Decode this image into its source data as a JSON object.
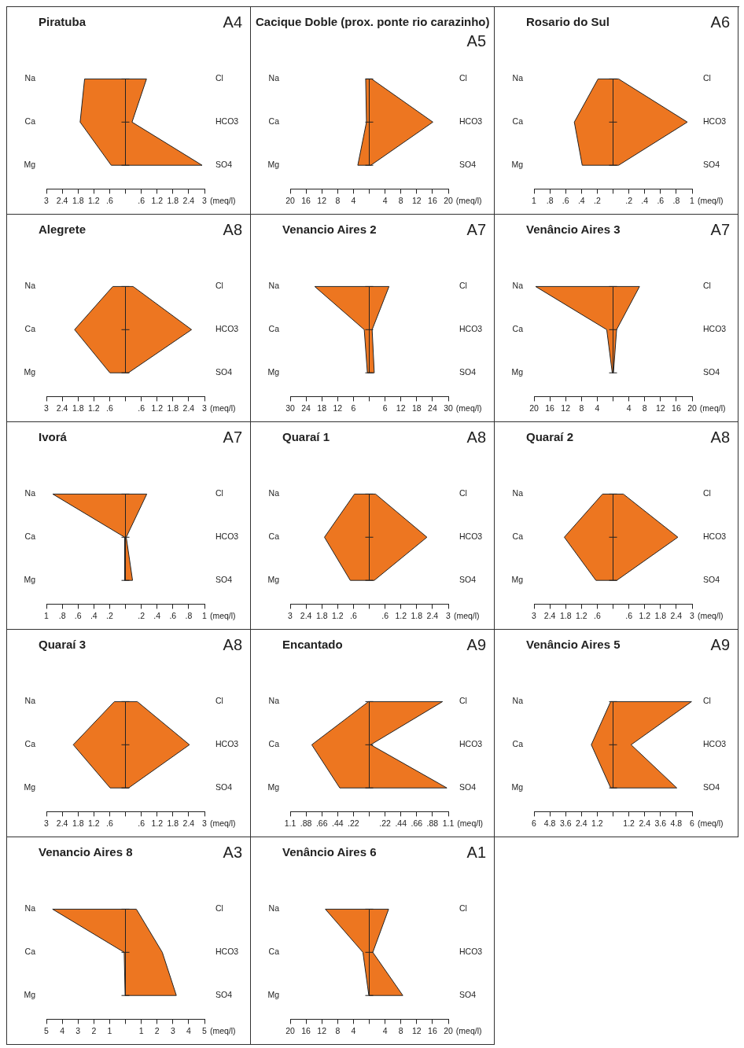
{
  "chart_data": [
    {
      "type": "area",
      "orientation": "horizontal",
      "title": "Piratuba",
      "annotations": [
        "A4"
      ],
      "categories": [
        "Na",
        "Ca",
        "Mg"
      ],
      "y2_categories": [
        "Cl",
        "HCO3",
        "SO4"
      ],
      "xlabel": "(meq/l)",
      "xlim": [
        -3,
        3
      ],
      "xticks": [
        {
          "value": -3,
          "label": "3"
        },
        {
          "value": -2.4,
          "label": "2.4"
        },
        {
          "value": -1.8,
          "label": "1.8"
        },
        {
          "value": -1.2,
          "label": "1.2"
        },
        {
          "value": -0.6,
          "label": ".6"
        },
        {
          "value": 0,
          "label": null
        },
        {
          "value": 0.6,
          "label": ".6"
        },
        {
          "value": 1.2,
          "label": "1.2"
        },
        {
          "value": 1.8,
          "label": "1.8"
        },
        {
          "value": 2.4,
          "label": "2.4"
        },
        {
          "value": 3,
          "label": "3"
        }
      ],
      "ref_lines": [
        {
          "axis": "x",
          "value": 0
        }
      ],
      "series": [
        {
          "color": "#ed7620",
          "values": [
            -1.55,
            -1.72,
            -0.54
          ]
        },
        {
          "color": "#ed7621",
          "values": [
            0.8,
            0.25,
            2.91
          ]
        }
      ]
    },
    {
      "type": "area",
      "orientation": "horizontal",
      "title": "Cacique Doble (prox. ponte rio carazinho)",
      "annotations": [
        "A5"
      ],
      "categories": [
        "Na",
        "Ca",
        "Mg"
      ],
      "y2_categories": [
        "Cl",
        "HCO3",
        "SO4"
      ],
      "xlabel": "(meq/l)",
      "xlim": [
        -20,
        20
      ],
      "xticks": [
        {
          "value": -20,
          "label": "20"
        },
        {
          "value": -16,
          "label": "16"
        },
        {
          "value": -12,
          "label": "12"
        },
        {
          "value": -8,
          "label": "8"
        },
        {
          "value": -4,
          "label": "4"
        },
        {
          "value": 0,
          "label": null
        },
        {
          "value": 4,
          "label": "4"
        },
        {
          "value": 8,
          "label": "8"
        },
        {
          "value": 12,
          "label": "12"
        },
        {
          "value": 16,
          "label": "16"
        },
        {
          "value": 20,
          "label": "20"
        }
      ],
      "ref_lines": [
        {
          "axis": "x",
          "value": 0
        }
      ],
      "series": [
        {
          "color": "#ed7620",
          "values": [
            -0.9,
            -0.7,
            -2.9
          ]
        },
        {
          "color": "#ed7621",
          "values": [
            0.6,
            16.1,
            0.4
          ]
        }
      ]
    },
    {
      "type": "area",
      "orientation": "horizontal",
      "title": "Rosario do Sul",
      "annotations": [
        "A6"
      ],
      "categories": [
        "Na",
        "Ca",
        "Mg"
      ],
      "y2_categories": [
        "Cl",
        "HCO3",
        "SO4"
      ],
      "xlabel": "(meq/l)",
      "xlim": [
        -1,
        1
      ],
      "xticks": [
        {
          "value": -1,
          "label": "1"
        },
        {
          "value": -0.8,
          "label": ".8"
        },
        {
          "value": -0.6,
          "label": ".6"
        },
        {
          "value": -0.4,
          "label": ".4"
        },
        {
          "value": -0.2,
          "label": ".2"
        },
        {
          "value": 0,
          "label": null
        },
        {
          "value": 0.2,
          "label": ".2"
        },
        {
          "value": 0.4,
          "label": ".4"
        },
        {
          "value": 0.6,
          "label": ".6"
        },
        {
          "value": 0.8,
          "label": ".8"
        },
        {
          "value": 1,
          "label": "1"
        }
      ],
      "ref_lines": [
        {
          "axis": "x",
          "value": 0
        }
      ],
      "series": [
        {
          "color": "#ed7620",
          "values": [
            -0.19,
            -0.49,
            -0.39
          ]
        },
        {
          "color": "#ed7621",
          "values": [
            0.07,
            0.94,
            0.07
          ]
        }
      ]
    },
    {
      "type": "area",
      "orientation": "horizontal",
      "title": "Alegrete",
      "annotations": [
        "A8"
      ],
      "categories": [
        "Na",
        "Ca",
        "Mg"
      ],
      "y2_categories": [
        "Cl",
        "HCO3",
        "SO4"
      ],
      "xlabel": "(meq/l)",
      "xlim": [
        -3,
        3
      ],
      "xticks": [
        {
          "value": -3,
          "label": "3"
        },
        {
          "value": -2.4,
          "label": "2.4"
        },
        {
          "value": -1.8,
          "label": "1.8"
        },
        {
          "value": -1.2,
          "label": "1.2"
        },
        {
          "value": -0.6,
          "label": ".6"
        },
        {
          "value": 0,
          "label": null
        },
        {
          "value": 0.6,
          "label": ".6"
        },
        {
          "value": 1.2,
          "label": "1.2"
        },
        {
          "value": 1.8,
          "label": "1.8"
        },
        {
          "value": 2.4,
          "label": "2.4"
        },
        {
          "value": 3,
          "label": "3"
        }
      ],
      "ref_lines": [
        {
          "axis": "x",
          "value": 0
        }
      ],
      "series": [
        {
          "color": "#ed7620",
          "values": [
            -0.48,
            -1.93,
            -0.59
          ]
        },
        {
          "color": "#ed7621",
          "values": [
            0.29,
            2.51,
            0.11
          ]
        }
      ]
    },
    {
      "type": "area",
      "orientation": "horizontal",
      "title": "Venancio Aires 2",
      "annotations": [
        "A7"
      ],
      "categories": [
        "Na",
        "Ca",
        "Mg"
      ],
      "y2_categories": [
        "Cl",
        "HCO3",
        "SO4"
      ],
      "xlabel": "(meq/l)",
      "xlim": [
        -30,
        30
      ],
      "xticks": [
        {
          "value": -30,
          "label": "30"
        },
        {
          "value": -24,
          "label": "24"
        },
        {
          "value": -18,
          "label": "18"
        },
        {
          "value": -12,
          "label": "12"
        },
        {
          "value": -6,
          "label": "6"
        },
        {
          "value": 0,
          "label": null
        },
        {
          "value": 6,
          "label": "6"
        },
        {
          "value": 12,
          "label": "12"
        },
        {
          "value": 18,
          "label": "18"
        },
        {
          "value": 24,
          "label": "24"
        },
        {
          "value": 30,
          "label": "30"
        }
      ],
      "ref_lines": [
        {
          "axis": "x",
          "value": 0
        }
      ],
      "series": [
        {
          "color": "#ed7620",
          "values": [
            -20.7,
            -1.9,
            -0.7
          ]
        },
        {
          "color": "#ed7621",
          "values": [
            7.5,
            1.1,
            1.9
          ]
        }
      ]
    },
    {
      "type": "area",
      "orientation": "horizontal",
      "title": "Venâncio Aires 3",
      "annotations": [
        "A7"
      ],
      "categories": [
        "Na",
        "Ca",
        "Mg"
      ],
      "y2_categories": [
        "Cl",
        "HCO3",
        "SO4"
      ],
      "xlabel": "(meq/l)",
      "xlim": [
        -20,
        20
      ],
      "xticks": [
        {
          "value": -20,
          "label": "20"
        },
        {
          "value": -16,
          "label": "16"
        },
        {
          "value": -12,
          "label": "12"
        },
        {
          "value": -8,
          "label": "8"
        },
        {
          "value": -4,
          "label": "4"
        },
        {
          "value": 0,
          "label": null
        },
        {
          "value": 4,
          "label": "4"
        },
        {
          "value": 8,
          "label": "8"
        },
        {
          "value": 12,
          "label": "12"
        },
        {
          "value": 16,
          "label": "16"
        },
        {
          "value": 20,
          "label": "20"
        }
      ],
      "ref_lines": [
        {
          "axis": "x",
          "value": 0
        }
      ],
      "series": [
        {
          "color": "#ed7620",
          "values": [
            -19.6,
            -1.6,
            -0.2
          ]
        },
        {
          "color": "#ed7621",
          "values": [
            6.7,
            0.9,
            0.1
          ]
        }
      ]
    },
    {
      "type": "area",
      "orientation": "horizontal",
      "title": "Ivorá",
      "annotations": [
        "A7"
      ],
      "categories": [
        "Na",
        "Ca",
        "Mg"
      ],
      "y2_categories": [
        "Cl",
        "HCO3",
        "SO4"
      ],
      "xlabel": "(meq/l)",
      "xlim": [
        -1,
        1
      ],
      "xticks": [
        {
          "value": -1,
          "label": "1"
        },
        {
          "value": -0.8,
          "label": ".8"
        },
        {
          "value": -0.6,
          "label": ".6"
        },
        {
          "value": -0.4,
          "label": ".4"
        },
        {
          "value": -0.2,
          "label": ".2"
        },
        {
          "value": 0,
          "label": null
        },
        {
          "value": 0.2,
          "label": ".2"
        },
        {
          "value": 0.4,
          "label": ".4"
        },
        {
          "value": 0.6,
          "label": ".6"
        },
        {
          "value": 0.8,
          "label": ".8"
        },
        {
          "value": 1,
          "label": "1"
        }
      ],
      "ref_lines": [
        {
          "axis": "x",
          "value": 0
        }
      ],
      "series": [
        {
          "color": "#ed7620",
          "values": [
            -0.92,
            -0.01,
            -0.01
          ]
        },
        {
          "color": "#ed7621",
          "values": [
            0.27,
            0.01,
            0.09
          ]
        }
      ]
    },
    {
      "type": "area",
      "orientation": "horizontal",
      "title": "Quaraí 1",
      "annotations": [
        "A8"
      ],
      "categories": [
        "Na",
        "Ca",
        "Mg"
      ],
      "y2_categories": [
        "Cl",
        "HCO3",
        "SO4"
      ],
      "xlabel": "(meq/l)",
      "xlim": [
        -3,
        3
      ],
      "xticks": [
        {
          "value": -3,
          "label": "3"
        },
        {
          "value": -2.4,
          "label": "2.4"
        },
        {
          "value": -1.8,
          "label": "1.8"
        },
        {
          "value": -1.2,
          "label": "1.2"
        },
        {
          "value": -0.6,
          "label": ".6"
        },
        {
          "value": 0,
          "label": null
        },
        {
          "value": 0.6,
          "label": ".6"
        },
        {
          "value": 1.2,
          "label": "1.2"
        },
        {
          "value": 1.8,
          "label": "1.8"
        },
        {
          "value": 2.4,
          "label": "2.4"
        },
        {
          "value": 3,
          "label": "3"
        }
      ],
      "ref_lines": [
        {
          "axis": "x",
          "value": 0
        }
      ],
      "series": [
        {
          "color": "#ed7620",
          "values": [
            -0.56,
            -1.7,
            -0.72
          ]
        },
        {
          "color": "#ed7621",
          "values": [
            0.24,
            2.19,
            0.19
          ]
        }
      ]
    },
    {
      "type": "area",
      "orientation": "horizontal",
      "title": "Quaraí 2",
      "annotations": [
        "A8"
      ],
      "categories": [
        "Na",
        "Ca",
        "Mg"
      ],
      "y2_categories": [
        "Cl",
        "HCO3",
        "SO4"
      ],
      "xlabel": "(meq/l)",
      "xlim": [
        -3,
        3
      ],
      "xticks": [
        {
          "value": -3,
          "label": "3"
        },
        {
          "value": -2.4,
          "label": "2.4"
        },
        {
          "value": -1.8,
          "label": "1.8"
        },
        {
          "value": -1.2,
          "label": "1.2"
        },
        {
          "value": -0.6,
          "label": ".6"
        },
        {
          "value": 0,
          "label": null
        },
        {
          "value": 0.6,
          "label": ".6"
        },
        {
          "value": 1.2,
          "label": "1.2"
        },
        {
          "value": 1.8,
          "label": "1.8"
        },
        {
          "value": 2.4,
          "label": "2.4"
        },
        {
          "value": 3,
          "label": "3"
        }
      ],
      "ref_lines": [
        {
          "axis": "x",
          "value": 0
        }
      ],
      "series": [
        {
          "color": "#ed7620",
          "values": [
            -0.4,
            -1.85,
            -0.65
          ]
        },
        {
          "color": "#ed7621",
          "values": [
            0.39,
            2.46,
            0.14
          ]
        }
      ]
    },
    {
      "type": "area",
      "orientation": "horizontal",
      "title": "Quaraí 3",
      "annotations": [
        "A8"
      ],
      "categories": [
        "Na",
        "Ca",
        "Mg"
      ],
      "y2_categories": [
        "Cl",
        "HCO3",
        "SO4"
      ],
      "xlabel": "(meq/l)",
      "xlim": [
        -3,
        3
      ],
      "xticks": [
        {
          "value": -3,
          "label": "3"
        },
        {
          "value": -2.4,
          "label": "2.4"
        },
        {
          "value": -1.8,
          "label": "1.8"
        },
        {
          "value": -1.2,
          "label": "1.2"
        },
        {
          "value": -0.6,
          "label": ".6"
        },
        {
          "value": 0,
          "label": null
        },
        {
          "value": 0.6,
          "label": ".6"
        },
        {
          "value": 1.2,
          "label": "1.2"
        },
        {
          "value": 1.8,
          "label": "1.8"
        },
        {
          "value": 2.4,
          "label": "2.4"
        },
        {
          "value": 3,
          "label": "3"
        }
      ],
      "ref_lines": [
        {
          "axis": "x",
          "value": 0
        }
      ],
      "series": [
        {
          "color": "#ed7620",
          "values": [
            -0.42,
            -1.98,
            -0.58
          ]
        },
        {
          "color": "#ed7621",
          "values": [
            0.45,
            2.43,
            0.12
          ]
        }
      ]
    },
    {
      "type": "area",
      "orientation": "horizontal",
      "title": "Encantado",
      "annotations": [
        "A9"
      ],
      "categories": [
        "Na",
        "Ca",
        "Mg"
      ],
      "y2_categories": [
        "Cl",
        "HCO3",
        "SO4"
      ],
      "xlabel": "(meq/l)",
      "xlim": [
        -1.1,
        1.1
      ],
      "xticks": [
        {
          "value": -1.1,
          "label": "1.1"
        },
        {
          "value": -0.88,
          "label": ".88"
        },
        {
          "value": -0.66,
          "label": ".66"
        },
        {
          "value": -0.44,
          "label": ".44"
        },
        {
          "value": -0.22,
          "label": ".22"
        },
        {
          "value": 0,
          "label": null
        },
        {
          "value": 0.22,
          "label": ".22"
        },
        {
          "value": 0.44,
          "label": ".44"
        },
        {
          "value": 0.66,
          "label": ".66"
        },
        {
          "value": 0.88,
          "label": ".88"
        },
        {
          "value": 1.1,
          "label": "1.1"
        }
      ],
      "ref_lines": [
        {
          "axis": "x",
          "value": 0
        }
      ],
      "series": [
        {
          "color": "#ed7620",
          "values": [
            -0.01,
            -0.8,
            -0.41
          ]
        },
        {
          "color": "#ed7621",
          "values": [
            1.02,
            0.02,
            1.08
          ]
        }
      ]
    },
    {
      "type": "area",
      "orientation": "horizontal",
      "title": "Venâncio Aires 5",
      "annotations": [
        "A9"
      ],
      "categories": [
        "Na",
        "Ca",
        "Mg"
      ],
      "y2_categories": [
        "Cl",
        "HCO3",
        "SO4"
      ],
      "xlabel": "(meq/l)",
      "xlim": [
        -6,
        6
      ],
      "xticks": [
        {
          "value": -6,
          "label": "6"
        },
        {
          "value": -4.8,
          "label": "4.8"
        },
        {
          "value": -3.6,
          "label": "3.6"
        },
        {
          "value": -2.4,
          "label": "2.4"
        },
        {
          "value": -1.2,
          "label": "1.2"
        },
        {
          "value": 0,
          "label": null
        },
        {
          "value": 1.2,
          "label": "1.2"
        },
        {
          "value": 2.4,
          "label": "2.4"
        },
        {
          "value": 3.6,
          "label": "3.6"
        },
        {
          "value": 4.8,
          "label": "4.8"
        },
        {
          "value": 6,
          "label": "6"
        }
      ],
      "ref_lines": [
        {
          "axis": "x",
          "value": 0
        }
      ],
      "series": [
        {
          "color": "#ed7620",
          "values": [
            -0.18,
            -1.65,
            -0.18
          ]
        },
        {
          "color": "#ed7621",
          "values": [
            5.96,
            1.37,
            4.84
          ]
        }
      ]
    },
    {
      "type": "area",
      "orientation": "horizontal",
      "title": "Venancio Aires 8",
      "annotations": [
        "A3"
      ],
      "categories": [
        "Na",
        "Ca",
        "Mg"
      ],
      "y2_categories": [
        "Cl",
        "HCO3",
        "SO4"
      ],
      "xlabel": "(meq/l)",
      "xlim": [
        -5,
        5
      ],
      "xticks": [
        {
          "value": -5,
          "label": "5"
        },
        {
          "value": -4,
          "label": "4"
        },
        {
          "value": -3,
          "label": "3"
        },
        {
          "value": -2,
          "label": "2"
        },
        {
          "value": -1,
          "label": "1"
        },
        {
          "value": 0,
          "label": null
        },
        {
          "value": 1,
          "label": "1"
        },
        {
          "value": 2,
          "label": "2"
        },
        {
          "value": 3,
          "label": "3"
        },
        {
          "value": 4,
          "label": "4"
        },
        {
          "value": 5,
          "label": "5"
        }
      ],
      "ref_lines": [
        {
          "axis": "x",
          "value": 0
        }
      ],
      "series": [
        {
          "color": "#ed7620",
          "values": [
            -4.61,
            -0.08,
            -0.02
          ]
        },
        {
          "color": "#ed7621",
          "values": [
            0.69,
            2.33,
            3.22
          ]
        }
      ]
    },
    {
      "type": "area",
      "orientation": "horizontal",
      "title": "Venâncio Aires 6",
      "annotations": [
        "A1"
      ],
      "categories": [
        "Na",
        "Ca",
        "Mg"
      ],
      "y2_categories": [
        "Cl",
        "HCO3",
        "SO4"
      ],
      "xlabel": "(meq/l)",
      "xlim": [
        -20,
        20
      ],
      "xticks": [
        {
          "value": -20,
          "label": "20"
        },
        {
          "value": -16,
          "label": "16"
        },
        {
          "value": -12,
          "label": "12"
        },
        {
          "value": -8,
          "label": "8"
        },
        {
          "value": -4,
          "label": "4"
        },
        {
          "value": 0,
          "label": null
        },
        {
          "value": 4,
          "label": "4"
        },
        {
          "value": 8,
          "label": "8"
        },
        {
          "value": 12,
          "label": "12"
        },
        {
          "value": 16,
          "label": "16"
        },
        {
          "value": 20,
          "label": "20"
        }
      ],
      "ref_lines": [
        {
          "axis": "x",
          "value": 0
        }
      ],
      "series": [
        {
          "color": "#ed7620",
          "values": [
            -11.1,
            -1.6,
            -0.1
          ]
        },
        {
          "color": "#ed7621",
          "values": [
            4.9,
            0.9,
            8.5
          ]
        }
      ]
    }
  ]
}
